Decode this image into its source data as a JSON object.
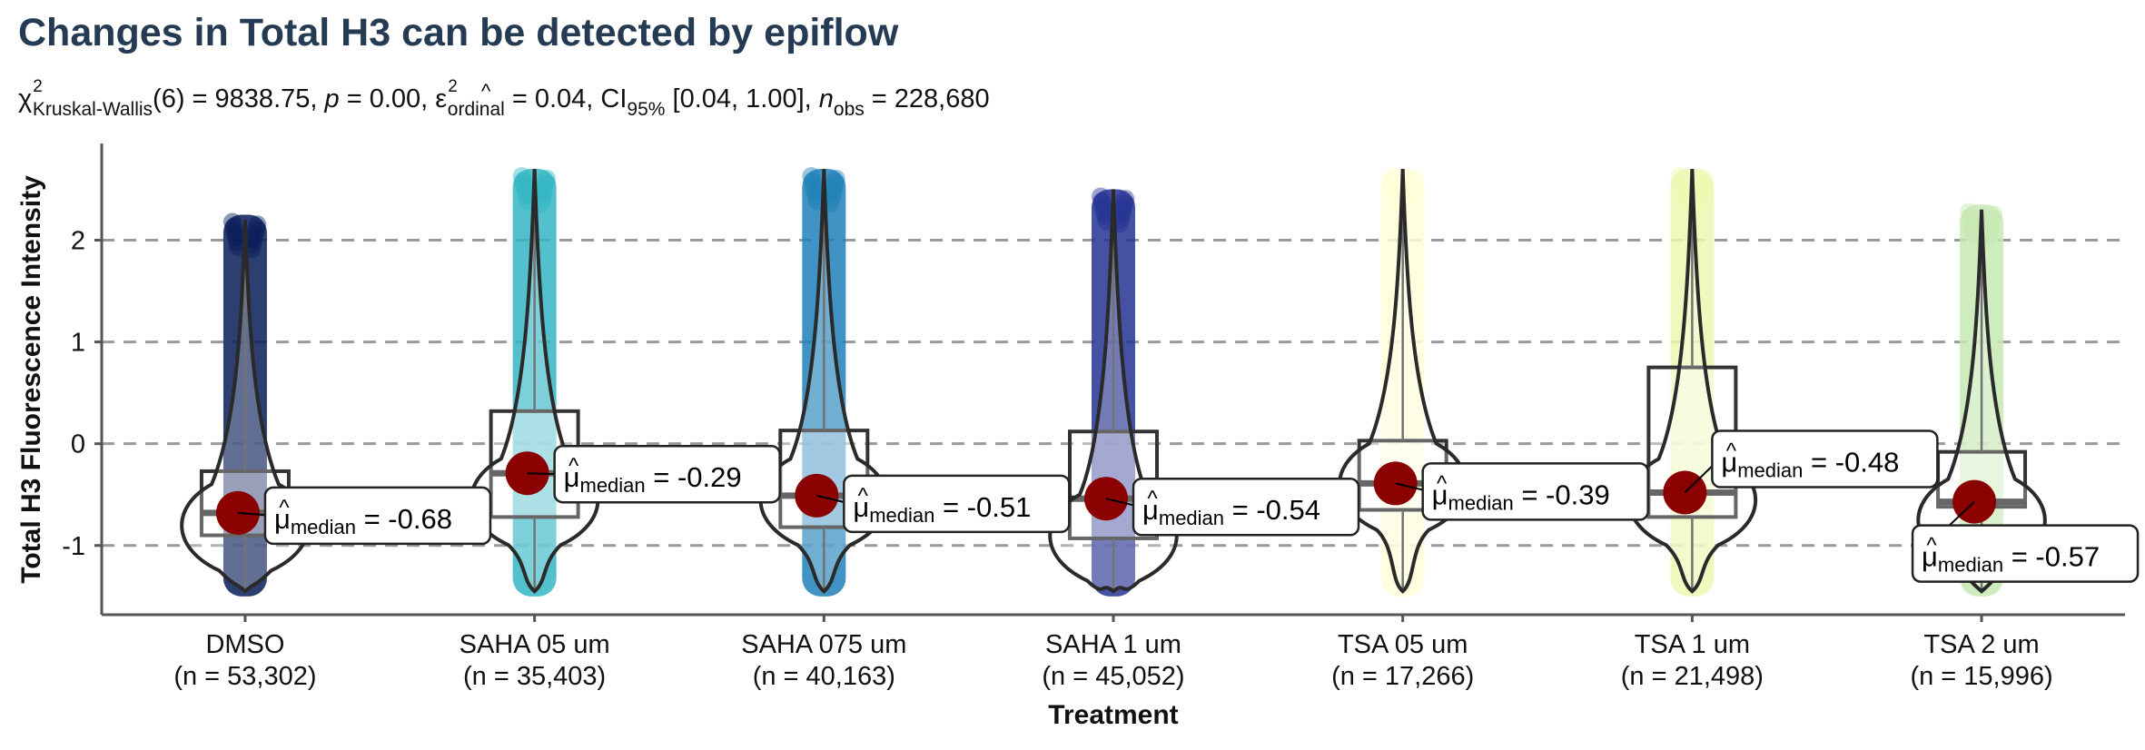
{
  "chart_data": {
    "type": "violin-box-scatter",
    "title": "Changes in Total H3 can be detected by epiflow",
    "subtitle": {
      "chi_symbol": "χ",
      "chi_sup": "2",
      "chi_sub": "Kruskal-Wallis",
      "df": "(6)",
      "stat": " = 9838.75, ",
      "p_label": "p",
      "p_value": " = 0.00, ",
      "eps_symbol": "ε",
      "eps_hat": "^",
      "eps_sup": "2",
      "eps_sub": "ordinal",
      "eps_value": " = 0.04, CI",
      "ci_sub": "95%",
      "ci_value": " [0.04, 1.00], ",
      "n_label": "n",
      "n_sub": "obs",
      "n_value": " = 228,680"
    },
    "xlabel": "Treatment",
    "ylabel": "Total H3 Fluorescence Intensity",
    "ylim": [
      -1.68,
      2.95
    ],
    "yticks": [
      -1,
      0,
      1,
      2
    ],
    "grid": "horizontal-dashed",
    "label_prefix": "μ",
    "label_hat": "^",
    "label_sub": "median",
    "categories": [
      {
        "name": "DMSO",
        "n_label": "(n = 53,302)",
        "color": "#081d58",
        "median": -0.68,
        "median_label": " = -0.68",
        "q1": -0.9,
        "q3": -0.27,
        "ymin": -1.5,
        "ymax": 2.25,
        "vmax": 2.2,
        "vmin": -1.45,
        "mode": -0.8
      },
      {
        "name": "SAHA 05 um",
        "n_label": "(n = 35,403)",
        "color": "#34b6c4",
        "median": -0.29,
        "median_label": " = -0.29",
        "q1": -0.72,
        "q3": 0.32,
        "ymin": -1.5,
        "ymax": 2.7,
        "vmax": 2.7,
        "vmin": -1.45,
        "mode": -0.55
      },
      {
        "name": "SAHA 075 um",
        "n_label": "(n = 40,163)",
        "color": "#1e80b8",
        "median": -0.51,
        "median_label": " = -0.51",
        "q1": -0.82,
        "q3": 0.13,
        "ymin": -1.5,
        "ymax": 2.7,
        "vmax": 2.7,
        "vmin": -1.45,
        "mode": -0.55
      },
      {
        "name": "SAHA 1 um",
        "n_label": "(n = 45,052)",
        "color": "#243392",
        "median": -0.54,
        "median_label": " = -0.54",
        "q1": -0.93,
        "q3": 0.12,
        "ymin": -1.5,
        "ymax": 2.5,
        "vmax": 2.5,
        "vmin": -1.45,
        "mode": -0.9
      },
      {
        "name": "TSA 05 um",
        "n_label": "(n = 17,266)",
        "color": "#ffffd9",
        "median": -0.39,
        "median_label": " = -0.39",
        "q1": -0.65,
        "q3": 0.03,
        "ymin": -1.5,
        "ymax": 2.7,
        "vmax": 2.7,
        "vmin": -1.45,
        "mode": -0.4
      },
      {
        "name": "TSA 1 um",
        "n_label": "(n = 21,498)",
        "color": "#edf8b1",
        "median": -0.48,
        "median_label": " = -0.48",
        "q1": -0.72,
        "q3": 0.75,
        "ymin": -1.5,
        "ymax": 2.7,
        "vmax": 2.7,
        "vmin": -1.45,
        "mode": -0.55
      },
      {
        "name": "TSA 2 um",
        "n_label": "(n = 15,996)",
        "color": "#c7e9b4",
        "median": -0.57,
        "median_label": " = -0.57",
        "q1": -0.62,
        "q3": -0.08,
        "ymin": -1.5,
        "ymax": 2.35,
        "vmax": 2.3,
        "vmin": -1.45,
        "mode": -0.75
      }
    ]
  }
}
